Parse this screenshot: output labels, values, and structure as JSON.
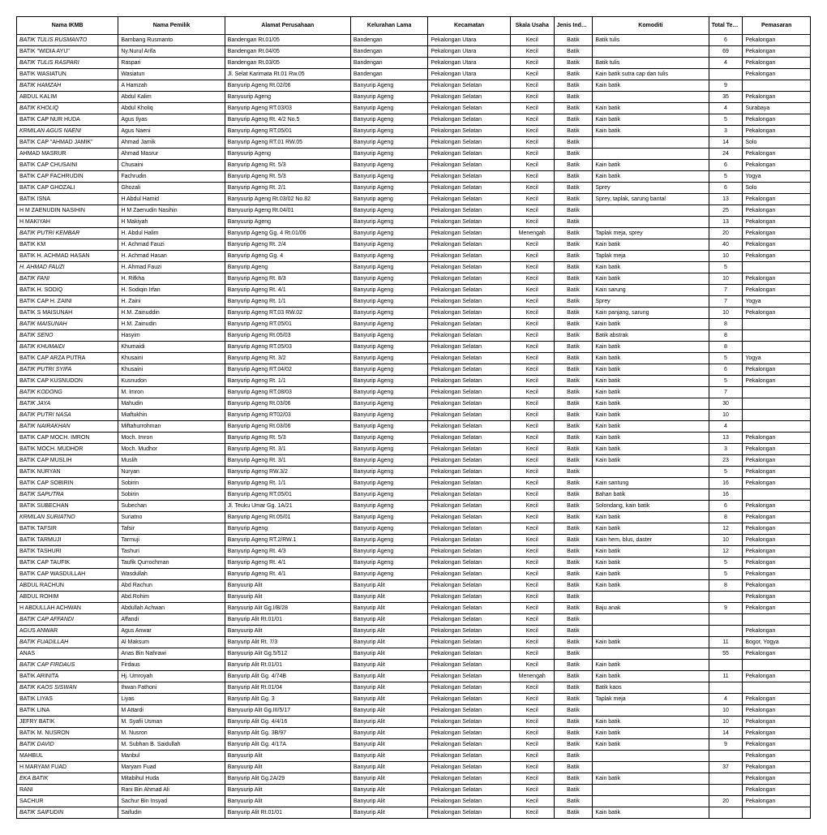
{
  "headers": [
    "Nama IKMB",
    "Nama Pemilik",
    "Alamat Perusahaan",
    "Kelurahan Lama",
    "Kecamatan",
    "Skala Usaha",
    "Jenis Industri",
    "Komoditi",
    "Total Tenaga Kerja",
    "Pemasaran"
  ],
  "rows": [
    {
      "i": true,
      "d": [
        "BATIK TULIS RUSMANTO",
        "Bambang Rusmanto",
        "Bandengan Rt.01/05",
        "Bandengan",
        "Pekalongan Utara",
        "Kecil",
        "Batik",
        "Batik tulis",
        "6",
        "Pekalongan"
      ]
    },
    {
      "i": false,
      "d": [
        "BATIK \"WIDIA AYU\"",
        "Ny.Nurul Arifa",
        "Bandengan Rt.04/05",
        "Bandengan",
        "Pekalongan Utara",
        "Kecil",
        "Batik",
        "",
        "69",
        "Pekalongan"
      ]
    },
    {
      "i": true,
      "d": [
        "BATIK TULIS RASPARI",
        "Raspari",
        "Bandengan Rt.03/05",
        "Bandengan",
        "Pekalongan Utara",
        "Kecil",
        "Batik",
        "Batik tulis",
        "4",
        "Pekalongan"
      ]
    },
    {
      "i": false,
      "d": [
        "BATIK WASIATUN",
        "Wasiatun",
        "Jl. Selat Karimata Rt.01 Rw.05",
        "Bandengan",
        "Pekalongan Utara",
        "Kecil",
        "Batik",
        "Kain batik sutra cap dan tulis",
        "",
        "Pekalongan"
      ]
    },
    {
      "i": true,
      "d": [
        "BATIK HAMZAH",
        "A Hamzah",
        "Banyurip Ageng Rt.02/06",
        "Banyurip Ageng",
        "Pekalongan Selatan",
        "Kecil",
        "Batik",
        "Kain batik",
        "9",
        ""
      ]
    },
    {
      "i": false,
      "d": [
        "ABDUL KALIM",
        "Abdul Kalim",
        "Banyuurip Ageng",
        "Banyurip Ageng",
        "Pekalongan Selatan",
        "Kecil",
        "Batik",
        "",
        "35",
        "Pekalongan"
      ]
    },
    {
      "i": true,
      "d": [
        "BATIK KHOLIQ",
        "Abdul Kholiq",
        "Banyurip Ageng RT.03/03",
        "Banyurip Ageng",
        "Pekalongan Selatan",
        "Kecil",
        "Batik",
        "Kain batik",
        "4",
        "Surabaya"
      ]
    },
    {
      "i": false,
      "d": [
        "BATIK CAP NUR HUDA",
        "Agus Ilyas",
        "Banyurip Ageng Rt. 4/2 No.5",
        "Banyurip Ageng",
        "Pekalongan Selatan",
        "Kecil",
        "Batik",
        "Kain batik",
        "5",
        "Pekalongan"
      ]
    },
    {
      "i": true,
      "d": [
        "KRMILAN AGUS NAENI",
        "Agus Naeni",
        "Banyurip Ageng RT.05/01",
        "Banyurip Ageng",
        "Pekalongan Selatan",
        "Kecil",
        "Batik",
        "Kain batik",
        "3",
        "Pekalongan"
      ]
    },
    {
      "i": false,
      "d": [
        "BATIK CAP \"AHMAD JAMIK\"",
        "Ahmad Jamik",
        "Banyurip Ageng RT.01 RW.05",
        "Banyurip Ageng",
        "Pekalongan Selatan",
        "Kecil",
        "Batik",
        "",
        "14",
        "Solo"
      ]
    },
    {
      "i": false,
      "d": [
        "AHMAD MASRUR",
        "Ahmad Masrur",
        "Banyuurip Ageng",
        "Banyurip Ageng",
        "Pekalongan Selatan",
        "Kecil",
        "Batik",
        "",
        "24",
        "Pekalongan"
      ]
    },
    {
      "i": false,
      "d": [
        "BATIK CAP CHUSAINI",
        "Chusaini",
        "Banyurip Ageng Rt. 5/3",
        "Banyurip Ageng",
        "Pekalongan Selatan",
        "Kecil",
        "Batik",
        "Kain batik",
        "6",
        "Pekalongan"
      ]
    },
    {
      "i": false,
      "d": [
        "BATIK CAP FACHRUDIN",
        "Fachrudin",
        "Banyurip Ageng Rt. 5/3",
        "Banyurip Ageng",
        "Pekalongan Selatan",
        "Kecil",
        "Batik",
        "Kain batik",
        "5",
        "Yogya"
      ]
    },
    {
      "i": false,
      "d": [
        "BATIK CAP GHOZALI",
        "Ghozali",
        "Banyurip Ageng Rt. 2/1",
        "Banyurip Ageng",
        "Pekalongan Selatan",
        "Kecil",
        "Batik",
        "Sprey",
        "6",
        "Solo"
      ]
    },
    {
      "i": false,
      "d": [
        "BATIK ISNA",
        "H Abdul Hamid",
        "Banyuurip Ageng Rt.03/02 No.82",
        "Banyurip ageng",
        "Pekalongan Selatan",
        "Kecil",
        "Batik",
        "Sprey, taplak, sarung bantal",
        "13",
        "Pekalongan"
      ]
    },
    {
      "i": false,
      "d": [
        "H M ZAENUDIN NASIHIN",
        "H M Zaenudin Nasihin",
        "Banyuurip Ageng Rt.04/01",
        "Banyurip Ageng",
        "Pekalongan Selatan",
        "Kecil",
        "Batik",
        "",
        "25",
        "Pekalongan"
      ]
    },
    {
      "i": false,
      "d": [
        "H MAKIYAH",
        "H Makiyah",
        "Banyuurip Ageng",
        "Banyurip Ageng",
        "Pekalongan Selatan",
        "Kecil",
        "Batik",
        "",
        "13",
        "Pekalongan"
      ]
    },
    {
      "i": true,
      "d": [
        "BATIK PUTRI KEMBAR",
        "H. Abdul Halim",
        "Banyurip Ageng Gg. 4 Rt.01/06",
        "Banyurip Ageng",
        "Pekalongan Selatan",
        "Menengah",
        "Batik",
        "Taplak meja, sprey",
        "20",
        "Pekalongan"
      ]
    },
    {
      "i": false,
      "d": [
        "BATIK KM",
        "H. Achmad Fauzi",
        "Banyurip Ageng Rt. 2/4",
        "Banyurip Ageng",
        "Pekalongan Selatan",
        "Kecil",
        "Batik",
        "Kain batik",
        "40",
        "Pekalongan"
      ]
    },
    {
      "i": false,
      "d": [
        "BATIK H. ACHMAD HASAN",
        "H. Achmad Hasan",
        "Banyurip Ageng Gg. 4",
        "Banyurip Ageng",
        "Pekalongan Selatan",
        "Kecil",
        "Batik",
        "Taplak meja",
        "10",
        "Pekalongan"
      ]
    },
    {
      "i": true,
      "d": [
        "H. AHMAD FAUZI",
        "H. Ahmad Fauzi",
        "Banyurip Ageng",
        "Banyurip Ageng",
        "Pekalongan Selatan",
        "Kecil",
        "Batik",
        "Kain batik",
        "5",
        ""
      ]
    },
    {
      "i": true,
      "d": [
        "BATIK FANI",
        "H. Rifkha",
        "Banyurip Ageng Rt. 8/3",
        "Banyurip Ageng",
        "Pekalongan Selatan",
        "Kecil",
        "Batik",
        "Kain batik",
        "10",
        "Pekalongan"
      ]
    },
    {
      "i": false,
      "d": [
        "BATIK H. SODIQ",
        "H. Sodiqin Irfan",
        "Banyurip Ageng Rt. 4/1",
        "Banyurip Ageng",
        "Pekalongan Selatan",
        "Kecil",
        "Batik",
        "Kain sarung",
        "7",
        "Pekalongan"
      ]
    },
    {
      "i": false,
      "d": [
        "BATIK CAP H. ZAINI",
        "H. Zaini",
        "Banyurip Ageng Rt. 1/1",
        "Banyurip Ageng",
        "Pekalongan Selatan",
        "Kecil",
        "Batik",
        "Sprey",
        "7",
        "Yogya"
      ]
    },
    {
      "i": false,
      "d": [
        "BATIK S MAISUNAH",
        "H.M. Zainuddin",
        "Banyurip Ageng RT.03 RW.02",
        "Banyurip Ageng",
        "Pekalongan Selatan",
        "Kecil",
        "Batik",
        "Kain panjang, sarung",
        "10",
        "Pekalongan"
      ]
    },
    {
      "i": true,
      "d": [
        "BATIK MAISUNAH",
        "H.M. Zainudin",
        "Banyurip Ageng RT.05/01",
        "Banyurip Ageng",
        "Pekalongan Selatan",
        "Kecil",
        "Batik",
        "Kain batik",
        "8",
        ""
      ]
    },
    {
      "i": true,
      "d": [
        "BATIK SENO",
        "Hasyim",
        "Banyurip Ageng Rt.05/03",
        "Banyurip Ageng",
        "Pekalongan Selatan",
        "Kecil",
        "Batik",
        "Batik abstrak",
        "8",
        ""
      ]
    },
    {
      "i": true,
      "d": [
        "BATIK KHUMAIDI",
        "Khumaidi",
        "Banyurip Ageng RT.05/03",
        "Banyurip Ageng",
        "Pekalongan Selatan",
        "Kecil",
        "Batik",
        "Kain batik",
        "8",
        ""
      ]
    },
    {
      "i": false,
      "d": [
        "BATIK CAP ARZA PUTRA",
        "Khusaini",
        "Banyurip Ageng Rt. 3/2",
        "Banyurip Ageng",
        "Pekalongan Selatan",
        "Kecil",
        "Batik",
        "Kain batik",
        "5",
        "Yogya"
      ]
    },
    {
      "i": true,
      "d": [
        "BATIK PUTRI SYIFA",
        "Khusaini",
        "Banyurip Ageng RT.04/02",
        "Banyurip Ageng",
        "Pekalongan Selatan",
        "Kecil",
        "Batik",
        "Kain batik",
        "6",
        "Pekalongan"
      ]
    },
    {
      "i": false,
      "d": [
        "BATIK CAP KUSNUDON",
        "Kusnudon",
        "Banyurip Ageng Rt. 1/1",
        "Banyurip Ageng",
        "Pekalongan Selatan",
        "Kecil",
        "Batik",
        "Kain batik",
        "5",
        "Pekalongan"
      ]
    },
    {
      "i": true,
      "d": [
        "BATIK KODONG",
        "M. Imron",
        "Banyurip Ageng RT.08/03",
        "Banyurip Ageng",
        "Pekalongan Selatan",
        "Kecil",
        "Batik",
        "Kain batik",
        "7",
        ""
      ]
    },
    {
      "i": true,
      "d": [
        "BATIK JAYA",
        "Mahudin",
        "Banyurip Ageng Rt.03/06",
        "Banyurip Ageng",
        "Pekalongan Selatan",
        "Kecil",
        "Batik",
        "Kain batik",
        "30",
        ""
      ]
    },
    {
      "i": true,
      "d": [
        "BATIK PUTRI NASA",
        "Miaftukhin",
        "Banyurip Ageng RT02/03",
        "Banyurip Ageng",
        "Pekalongan Selatan",
        "Kecil",
        "Batik",
        "Kain batik",
        "10",
        ""
      ]
    },
    {
      "i": true,
      "d": [
        "BATIK NAIRAKHAN",
        "Miftahurrohman",
        "Banyurip Ageng Rt.03/06",
        "Banyurip Ageng",
        "Pekalongan Selatan",
        "Kecil",
        "Batik",
        "Kain batik",
        "4",
        ""
      ]
    },
    {
      "i": false,
      "d": [
        "BATIK CAP MOCH. IMRON",
        "Moch. Imron",
        "Banyurip Ageng Rt. 5/3",
        "Banyurip Ageng",
        "Pekalongan Selatan",
        "Kecil",
        "Batik",
        "Kain batik",
        "13",
        "Pekalongan"
      ]
    },
    {
      "i": false,
      "d": [
        "BATIK MOCH. MUDHOR",
        "Moch. Mudhor",
        "Banyurip Ageng Rt. 3/1",
        "Banyurip Ageng",
        "Pekalongan Selatan",
        "Kecil",
        "Batik",
        "Kain batik",
        "3",
        "Pekalongan"
      ]
    },
    {
      "i": false,
      "d": [
        "BATIK CAP MUSLIH",
        "Muslih",
        "Banyurip Ageng Rt. 3/1",
        "Banyurip Ageng",
        "Pekalongan Selatan",
        "Kecil",
        "Batik",
        "Kain batik",
        "23",
        "Pekalongan"
      ]
    },
    {
      "i": false,
      "d": [
        "BATIK NURYAN",
        "Nuryan",
        "Banyurip Ageng RW.3/2",
        "Banyurip Ageng",
        "Pekalongan Selatan",
        "Kecil",
        "Batik",
        "",
        "5",
        "Pekalongan"
      ]
    },
    {
      "i": false,
      "d": [
        "BATIK CAP SOBIRIN",
        "Sobirin",
        "Banyurip Ageng Rt. 1/1",
        "Banyurip Ageng",
        "Pekalongan Selatan",
        "Kecil",
        "Batik",
        "Kain santung",
        "16",
        "Pekalongan"
      ]
    },
    {
      "i": true,
      "d": [
        "BATIK SAPUTRA",
        "Sobirin",
        "Banyurip Ageng RT.05/01",
        "Banyurip Ageng",
        "Pekalongan Selatan",
        "Kecil",
        "Batik",
        "Bahan batik",
        "16",
        ""
      ]
    },
    {
      "i": false,
      "d": [
        "BATIK SUBECHAN",
        "Subechan",
        "Jl. Teuku Umar Gg. 1A/21",
        "Banyurip Ageng",
        "Pekalongan Selatan",
        "Kecil",
        "Batik",
        "Solondang, kain batik",
        "6",
        "Pekalongan"
      ]
    },
    {
      "i": true,
      "d": [
        "KRMILAN SURIATNO",
        "Suriatno",
        "Banyurip Ageng Rt.05/01",
        "Banyurip Ageng",
        "Pekalongan Selatan",
        "Kecil",
        "Batik",
        "Kain batik",
        "8",
        "Pekalongan"
      ]
    },
    {
      "i": false,
      "d": [
        "BATIK TAFSIR",
        "Tafsir",
        "Banyurip Ageng",
        "Banyurip Ageng",
        "Pekalongan Selatan",
        "Kecil",
        "Batik",
        "Kain batik",
        "12",
        "Pekalongan"
      ]
    },
    {
      "i": false,
      "d": [
        "BATIK TARMUJI",
        "Tarmuji",
        "Banyurip Ageng RT.2/RW.1",
        "Banyurip Ageng",
        "Pekalongan Selatan",
        "Kecil",
        "Batik",
        "Kain hem, blus, daster",
        "10",
        "Pekalongan"
      ]
    },
    {
      "i": false,
      "d": [
        "BATIK TASHURI",
        "Tashuri",
        "Banyurip Ageng Rt. 4/3",
        "Banyurip Ageng",
        "Pekalongan Selatan",
        "Kecil",
        "Batik",
        "Kain batik",
        "12",
        "Pekalongan"
      ]
    },
    {
      "i": false,
      "d": [
        "BATIK CAP TAUFIK",
        "Taufik Qurrochman",
        "Banyurip Ageng Rt. 4/1",
        "Banyurip Ageng",
        "Pekalongan Selatan",
        "Kecil",
        "Batik",
        "Kain batik",
        "5",
        "Pekalongan"
      ]
    },
    {
      "i": false,
      "d": [
        "BATIK CAP WASDULLAH",
        "Wasdullah",
        "Banyurip Ageng Rt. 4/1",
        "Banyurip Ageng",
        "Pekalongan Selatan",
        "Kecil",
        "Batik",
        "Kain batik",
        "5",
        "Pekalongan"
      ]
    },
    {
      "i": false,
      "d": [
        "ABDUL RACHUN",
        "Abd Rachun",
        "Banyuurip Alit",
        "Banyurip Alit",
        "Pekalongan Selatan",
        "Kecil",
        "Batik",
        "Kain batik",
        "8",
        "Pekalongan"
      ]
    },
    {
      "i": false,
      "d": [
        "ABDUL ROHIM",
        "Abd.Rohim",
        "Banyuurip Alit",
        "Banyurip Alit",
        "Pekalongan Selatan",
        "Kecil",
        "Batik",
        "",
        "",
        "Pekalongan"
      ]
    },
    {
      "i": false,
      "d": [
        "H ABDULLAH ACHWAN",
        "Abdullah Achwan",
        "Banyuurip Alit Gg.I/B/28",
        "Banyurip Alit",
        "Pekalongan Selatan",
        "Kecil",
        "Batik",
        "Baju anak",
        "9",
        "Pekalongan"
      ]
    },
    {
      "i": true,
      "d": [
        "BATIK CAP AFFANDI",
        "Affandi",
        "Banyurip Alit Rt.01/01",
        "Banyurip Alit",
        "Pekalongan Selatan",
        "Kecil",
        "Batik",
        "",
        "",
        ""
      ]
    },
    {
      "i": false,
      "d": [
        "AGUS ANWAR",
        "Agus Anwar",
        "Banyuurip Alit",
        "Banyurip Alit",
        "Pekalongan Selatan",
        "Kecil",
        "Batik",
        "",
        "",
        "Pekalongan"
      ]
    },
    {
      "i": true,
      "d": [
        "BATIK FUADILLAH",
        "Al Maksum",
        "Banyurip Alit Rt. 7/3",
        "Banyurip Alit",
        "Pekalongan Selatan",
        "Kecil",
        "Batik",
        "Kain batik",
        "11",
        "Bogor, Yogya"
      ]
    },
    {
      "i": false,
      "d": [
        "ANAS",
        "Anas Bin Nahrawi",
        "Banyuurip Alit Gg.5/512",
        "Banyurip Alit",
        "Pekalongan Selatan",
        "Kecil",
        "Batik",
        "",
        "55",
        "Pekalongan"
      ]
    },
    {
      "i": true,
      "d": [
        "BATIK CAP FIRDAUS",
        "Firdaus",
        "Banyurip Alit Rt.01/01",
        "Banyurip Alit",
        "Pekalongan Selatan",
        "Kecil",
        "Batik",
        "Kain batik",
        "",
        ""
      ]
    },
    {
      "i": false,
      "d": [
        "BATIK ARINITA",
        "Hj. Umroyah",
        "Banyurip Alit Gg. 4/74B",
        "Banyurip Alit",
        "Pekalongan Selatan",
        "Menengah",
        "Batik",
        "Kain batik",
        "11",
        "Pekalongan"
      ]
    },
    {
      "i": true,
      "d": [
        "BATIK KAOS SISWAN",
        "Ihwan Fathoni",
        "Banyurip Alit Rt.01/04",
        "Banyurip Alit",
        "Pekalongan Selatan",
        "Kecil",
        "Batik",
        "Batik kaos",
        "",
        ""
      ]
    },
    {
      "i": false,
      "d": [
        "BATIK LIYAS",
        "Liyas",
        "Banyurip Alit Gg. 3",
        "Banyurip Alit",
        "Pekalongan Selatan",
        "Kecil",
        "Batik",
        "Taplak meja",
        "4",
        "Pekalongan"
      ]
    },
    {
      "i": false,
      "d": [
        "BATIK LINA",
        "M Attardi",
        "Banyuurip Alit Gg.III/5/17",
        "Banyurip Alit",
        "Pekalongan Selatan",
        "Kecil",
        "Batik",
        "",
        "10",
        "Pekalongan"
      ]
    },
    {
      "i": false,
      "d": [
        "JEFRY BATIK",
        "M. Syafii Usman",
        "Banyurip Alit Gg. 4/4/16",
        "Banyurip Alit",
        "Pekalongan Selatan",
        "Kecil",
        "Batik",
        "Kain batik",
        "10",
        "Pekalongan"
      ]
    },
    {
      "i": false,
      "d": [
        "BATIK M. NUSRON",
        "M. Nusron",
        "Banyurip Alit Gg. 3B/97",
        "Banyurip Alit",
        "Pekalongan Selatan",
        "Kecil",
        "Batik",
        "Kain batik",
        "14",
        "Pekalongan"
      ]
    },
    {
      "i": true,
      "d": [
        "BATIK DAVID",
        "M. Subhan B. Saidullah",
        "Banyurip Alit Gg. 4/17A",
        "Banyurip Alit",
        "Pekalongan Selatan",
        "Kecil",
        "Batik",
        "Kain batik",
        "9",
        "Pekalongan"
      ]
    },
    {
      "i": false,
      "d": [
        "MAHBUL",
        "Manbul",
        "Banyuurip Alit",
        "Banyurip Alit",
        "Pekalongan Selatan",
        "Kecil",
        "Batik",
        "",
        "",
        "Pekalongan"
      ]
    },
    {
      "i": false,
      "d": [
        "H MARYAM FUAD",
        "Maryam Fuad",
        "Banyuurip Alit",
        "Banyurip Alit",
        "Pekalongan Selatan",
        "Kecil",
        "Batik",
        "",
        "37",
        "Pekalongan"
      ]
    },
    {
      "i": true,
      "d": [
        "EKA BATIK",
        "Mitabihul Huda",
        "Banyurip Alit Gg.2A/29",
        "Banyurip Alit",
        "Pekalongan Selatan",
        "Kecil",
        "Batik",
        "Kain batik",
        "",
        "Pekalongan"
      ]
    },
    {
      "i": false,
      "d": [
        "RANI",
        "Rani Bin Ahmad Ali",
        "Banyuurip Alit",
        "Banyurip Alit",
        "Pekalongan Selatan",
        "Kecil",
        "Batik",
        "",
        "",
        "Pekalongan"
      ]
    },
    {
      "i": false,
      "d": [
        "SACHUR",
        "Sachur Bin Insyad",
        "Banyuurip Alit",
        "Banyurip Alit",
        "Pekalongan Selatan",
        "Kecil",
        "Batik",
        "",
        "20",
        "Pekalongan"
      ]
    },
    {
      "i": true,
      "d": [
        "BATIK SAIFUDIN",
        "Saifudin",
        "Banyurip Alit Rt.01/01",
        "Banyurip Alit",
        "Pekalongan Selatan",
        "Kecil",
        "Batik",
        "Kain batik",
        "",
        ""
      ]
    }
  ]
}
